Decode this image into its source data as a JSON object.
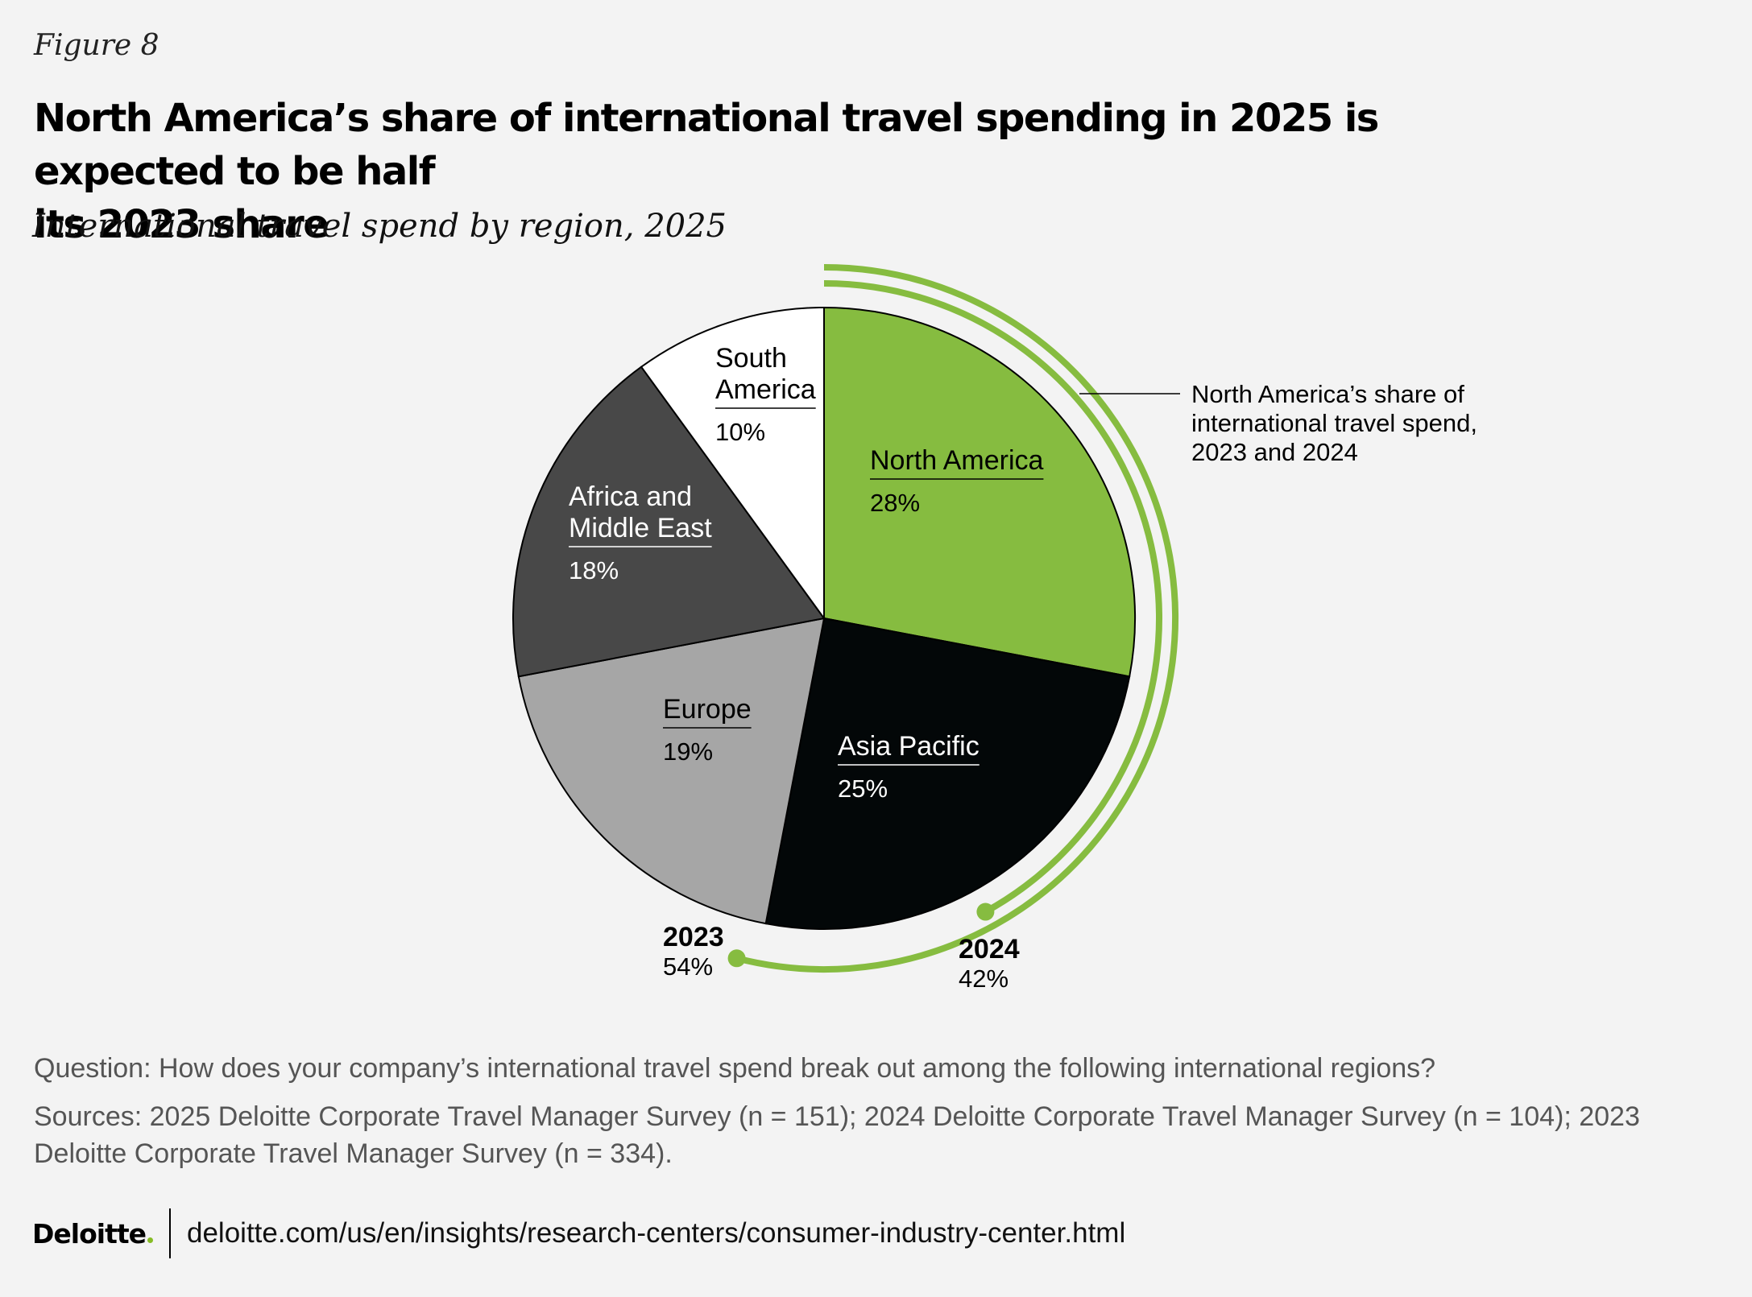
{
  "figure_label": "Figure 8",
  "title_line1": "North America’s share of international travel spending in 2025 is expected to be half",
  "title_line2": "its 2023 share",
  "subtitle": "International travel spend by region, 2025",
  "chart_data": {
    "type": "pie",
    "title": "International travel spend by region, 2025",
    "slices": [
      {
        "name": "North America",
        "label_lines": [
          "North America"
        ],
        "value": 28,
        "value_label": "28%",
        "color": "#86bc40",
        "text_color": "#000000"
      },
      {
        "name": "Asia Pacific",
        "label_lines": [
          "Asia Pacific"
        ],
        "value": 25,
        "value_label": "25%",
        "color": "#030708",
        "text_color": "#ffffff"
      },
      {
        "name": "Europe",
        "label_lines": [
          "Europe"
        ],
        "value": 19,
        "value_label": "19%",
        "color": "#a6a6a6",
        "text_color": "#000000"
      },
      {
        "name": "Africa and Middle East",
        "label_lines": [
          "Africa and",
          "Middle East"
        ],
        "value": 18,
        "value_label": "18%",
        "color": "#484848",
        "text_color": "#ffffff"
      },
      {
        "name": "South America",
        "label_lines": [
          "South",
          "America"
        ],
        "value": 10,
        "value_label": "10%",
        "color": "#ffffff",
        "text_color": "#000000"
      }
    ],
    "north_america_history": [
      {
        "year": "2023",
        "value": 54,
        "value_label": "54%"
      },
      {
        "year": "2024",
        "value": 42,
        "value_label": "42%"
      }
    ],
    "arc_color": "#86bc40",
    "annotation_lines": [
      "North America’s share of",
      "international travel spend,",
      "2023 and 2024"
    ]
  },
  "question": "Question: How does your company’s international travel spend break out among the following international regions?",
  "sources": "Sources: 2025 Deloitte Corporate Travel Manager Survey (n = 151); 2024 Deloitte Corporate Travel Manager Survey (n = 104); 2023 Deloitte Corporate Travel Manager Survey (n = 334).",
  "footer": {
    "brand": "Deloitte",
    "url": "deloitte.com/us/en/insights/research-centers/consumer-industry-center.html"
  }
}
